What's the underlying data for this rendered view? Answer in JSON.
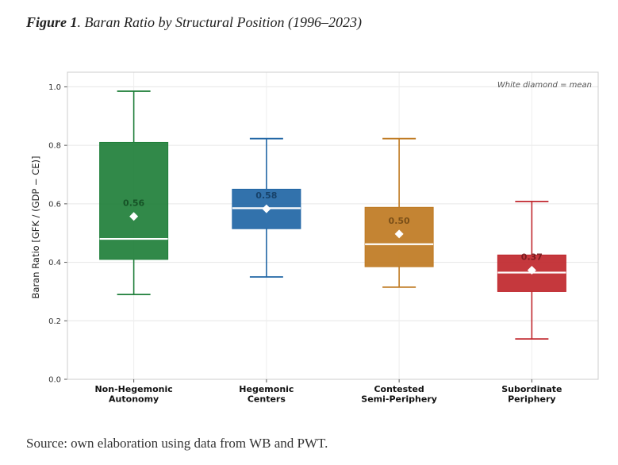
{
  "figure": {
    "label": "Figure 1",
    "title": ". Baran Ratio by Structural Position (1996–2023)",
    "source": "Source: own elaboration using data from WB and PWT."
  },
  "chart_data": {
    "type": "box",
    "ylabel": "Baran Ratio  [GFK / (GDP − CE)]",
    "ylim": [
      0,
      1.05
    ],
    "yticks": [
      "0.0",
      "0.2",
      "0.4",
      "0.6",
      "0.8",
      "1.0"
    ],
    "grid": true,
    "annotation": "White diamond = mean",
    "categories": [
      [
        "Non-Hegemonic",
        "Autonomy"
      ],
      [
        "Hegemonic",
        "Centers"
      ],
      [
        "Contested",
        "Semi-Periphery"
      ],
      [
        "Subordinate",
        "Periphery"
      ]
    ],
    "boxes": [
      {
        "whisker_low": 0.29,
        "q1": 0.41,
        "median": 0.48,
        "q3": 0.81,
        "whisker_high": 0.985,
        "mean": 0.557,
        "mean_label": "0.56",
        "color": "#1f7f3a"
      },
      {
        "whisker_low": 0.35,
        "q1": 0.515,
        "median": 0.585,
        "q3": 0.65,
        "whisker_high": 0.823,
        "mean": 0.583,
        "mean_label": "0.58",
        "color": "#2166a5"
      },
      {
        "whisker_low": 0.315,
        "q1": 0.385,
        "median": 0.462,
        "q3": 0.588,
        "whisker_high": 0.823,
        "mean": 0.497,
        "mean_label": "0.50",
        "color": "#bf7a22"
      },
      {
        "whisker_low": 0.138,
        "q1": 0.3,
        "median": 0.365,
        "q3": 0.425,
        "whisker_high": 0.608,
        "mean": 0.373,
        "mean_label": "0.37",
        "color": "#c0272d"
      }
    ]
  }
}
